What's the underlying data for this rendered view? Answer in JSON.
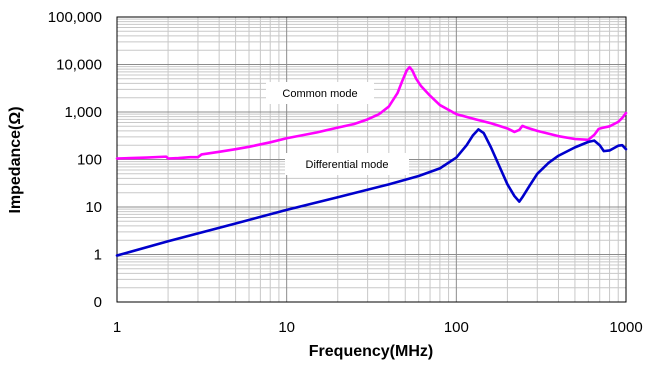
{
  "chart_data": {
    "type": "line",
    "xlabel": "Frequency(MHz)",
    "ylabel": "Impedance(Ω)",
    "x_scale": "log",
    "y_scale": "log",
    "xlim": [
      1,
      1000
    ],
    "ylim": [
      0.1,
      100000
    ],
    "grid": true,
    "x_ticks": [
      {
        "value": 1,
        "label": "1"
      },
      {
        "value": 10,
        "label": "10"
      },
      {
        "value": 100,
        "label": "100"
      },
      {
        "value": 1000,
        "label": "1000"
      }
    ],
    "y_ticks": [
      {
        "value": 0.1,
        "label": "0"
      },
      {
        "value": 1,
        "label": "1"
      },
      {
        "value": 10,
        "label": "10"
      },
      {
        "value": 100,
        "label": "100"
      },
      {
        "value": 1000,
        "label": "1,000"
      },
      {
        "value": 10000,
        "label": "10,000"
      },
      {
        "value": 100000,
        "label": "100,000"
      }
    ],
    "annotations": [
      {
        "text": "Common mode",
        "series": 0
      },
      {
        "text": "Differential mode",
        "series": 1
      }
    ],
    "series": [
      {
        "color": "#ff00ff",
        "points": [
          [
            1,
            105
          ],
          [
            1.5,
            110
          ],
          [
            1.95,
            115
          ],
          [
            2.0,
            105
          ],
          [
            2.3,
            107
          ],
          [
            2.7,
            112
          ],
          [
            3.0,
            112
          ],
          [
            3.15,
            128
          ],
          [
            4,
            145
          ],
          [
            5,
            165
          ],
          [
            6,
            185
          ],
          [
            8,
            230
          ],
          [
            10,
            280
          ],
          [
            15,
            370
          ],
          [
            20,
            470
          ],
          [
            25,
            560
          ],
          [
            30,
            700
          ],
          [
            35,
            900
          ],
          [
            40,
            1300
          ],
          [
            45,
            2500
          ],
          [
            48,
            4500
          ],
          [
            51,
            7500
          ],
          [
            53,
            8800
          ],
          [
            55,
            7500
          ],
          [
            58,
            5000
          ],
          [
            62,
            3500
          ],
          [
            70,
            2200
          ],
          [
            80,
            1400
          ],
          [
            100,
            900
          ],
          [
            130,
            700
          ],
          [
            160,
            580
          ],
          [
            200,
            450
          ],
          [
            220,
            380
          ],
          [
            235,
            420
          ],
          [
            245,
            510
          ],
          [
            260,
            470
          ],
          [
            300,
            400
          ],
          [
            400,
            310
          ],
          [
            500,
            270
          ],
          [
            600,
            260
          ],
          [
            650,
            330
          ],
          [
            690,
            440
          ],
          [
            720,
            460
          ],
          [
            800,
            500
          ],
          [
            900,
            620
          ],
          [
            950,
            750
          ],
          [
            1000,
            950
          ]
        ]
      },
      {
        "color": "#0000cc",
        "points": [
          [
            1,
            0.95
          ],
          [
            2,
            1.9
          ],
          [
            5,
            4.5
          ],
          [
            10,
            8.7
          ],
          [
            20,
            16
          ],
          [
            40,
            30
          ],
          [
            60,
            45
          ],
          [
            80,
            65
          ],
          [
            100,
            110
          ],
          [
            115,
            200
          ],
          [
            125,
            320
          ],
          [
            135,
            430
          ],
          [
            145,
            360
          ],
          [
            160,
            180
          ],
          [
            180,
            70
          ],
          [
            200,
            30
          ],
          [
            220,
            17
          ],
          [
            235,
            13
          ],
          [
            245,
            16
          ],
          [
            270,
            28
          ],
          [
            300,
            50
          ],
          [
            350,
            85
          ],
          [
            400,
            120
          ],
          [
            500,
            180
          ],
          [
            600,
            235
          ],
          [
            650,
            250
          ],
          [
            700,
            200
          ],
          [
            740,
            150
          ],
          [
            800,
            155
          ],
          [
            900,
            195
          ],
          [
            950,
            200
          ],
          [
            1000,
            165
          ]
        ]
      }
    ]
  }
}
